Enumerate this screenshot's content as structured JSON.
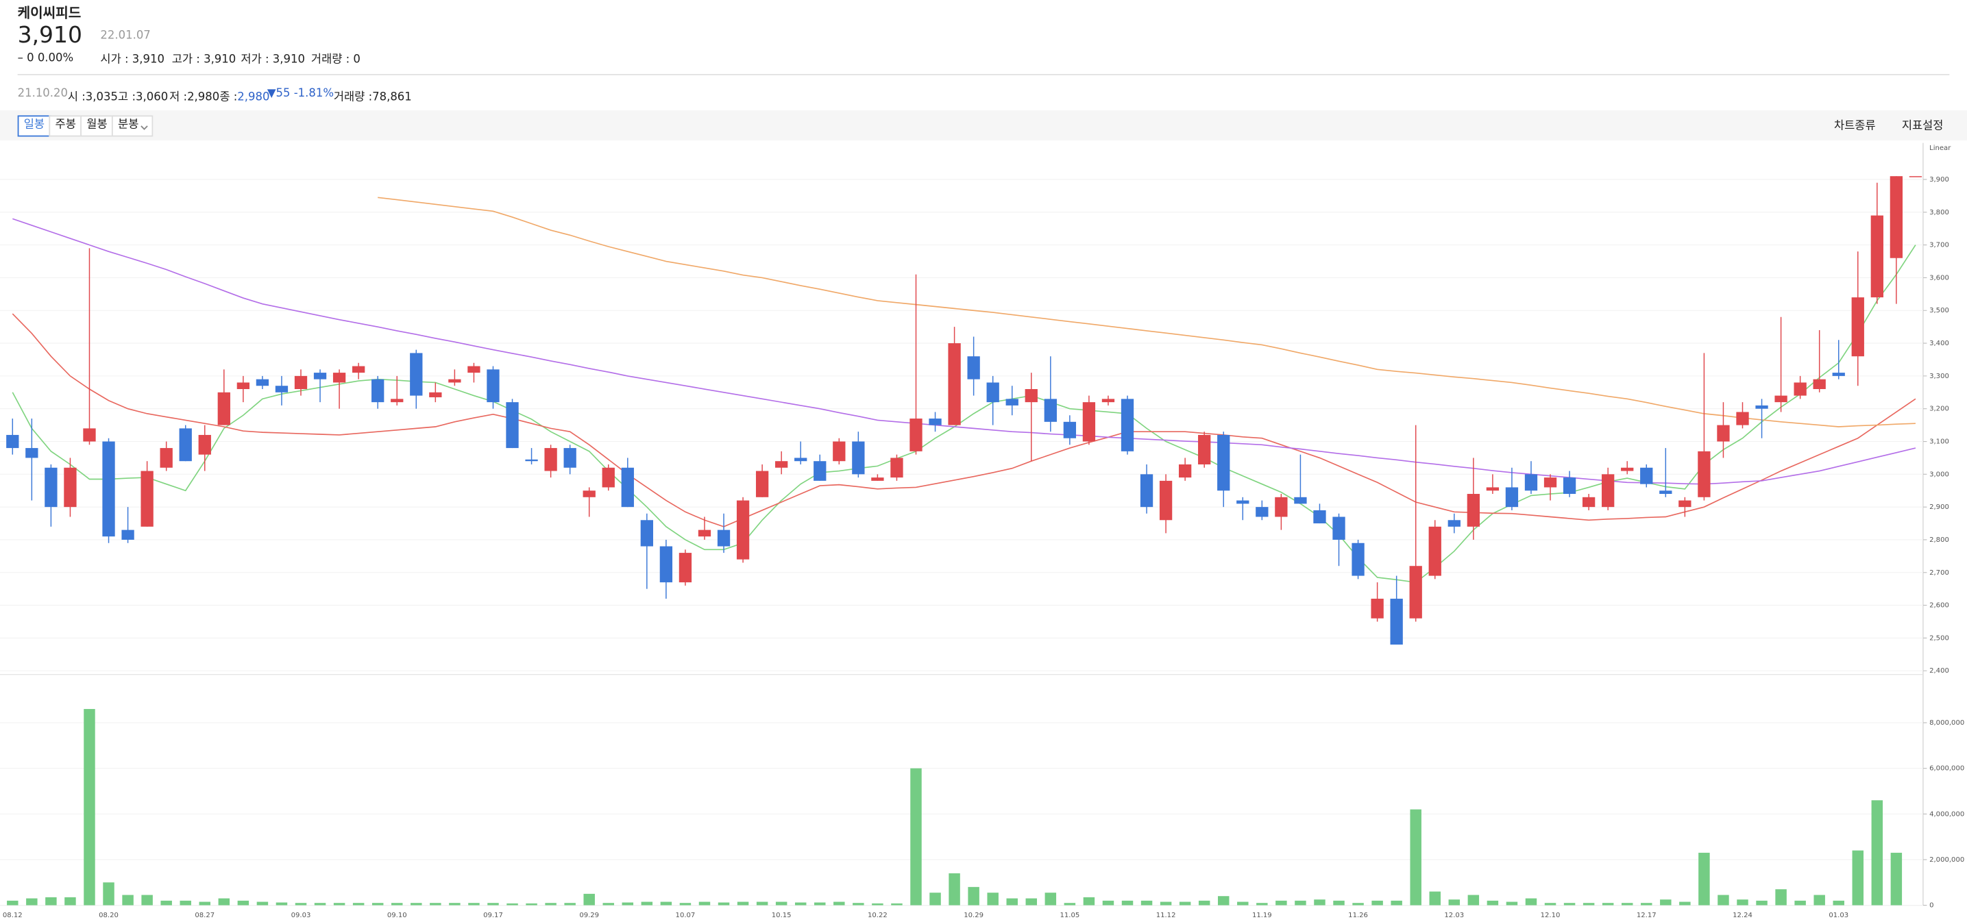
{
  "header": {
    "name": "케이씨피드",
    "price": "3,910",
    "change": "– 0 0.00%",
    "date": "22.01.07",
    "ohlc": [
      "시가 : 3,910",
      "고가 : 3,910",
      "저가 : 3,910",
      "거래량 : 0"
    ]
  },
  "info_bar": {
    "date": "21.10.20",
    "items": [
      {
        "label": "시 :",
        "value": "3,035"
      },
      {
        "label": "고 :",
        "value": "3,060"
      },
      {
        "label": "저 :",
        "value": "2,980"
      },
      {
        "label": "종 :",
        "value": "2,980"
      }
    ],
    "change": "▼55 -1.81%",
    "volume": {
      "label": "거래량 :",
      "value": "78,861"
    }
  },
  "toolbar": {
    "periods": [
      "일봉",
      "주봉",
      "월봉",
      "분봉"
    ],
    "right": [
      "차트종류",
      "지표설정"
    ]
  },
  "chart_data": [
    {
      "type": "candlestick",
      "scale": "Linear",
      "up_color": "#e0474c",
      "down_color": "#3b78d8",
      "grid": true,
      "open": [
        3120,
        3080,
        3020,
        2900,
        3100,
        3100,
        2830,
        2840,
        3020,
        3140,
        3060,
        3150,
        3260,
        3290,
        3270,
        3260,
        3310,
        3280,
        3310,
        3290,
        3220,
        3370,
        3235,
        3280,
        3310,
        3320,
        3220,
        3045,
        3010,
        3080,
        2930,
        2960,
        3020,
        2860,
        2780,
        2670,
        2810,
        2830,
        2740,
        2930,
        3020,
        3050,
        3040,
        3040,
        3100,
        2980,
        2990,
        3070,
        3170,
        3150,
        3360,
        3280,
        3230,
        3220,
        3230,
        3160,
        3100,
        3220,
        3230,
        3000,
        2860,
        2990,
        3030,
        3120,
        2920,
        2900,
        2870,
        2930,
        2890,
        2870,
        2790,
        2560,
        2620,
        2560,
        2690,
        2860,
        2840,
        2950,
        2960,
        3000,
        2960,
        2990,
        2900,
        2900,
        3010,
        3020,
        2950,
        2900,
        2930,
        3100,
        3150,
        3210,
        3220,
        3240,
        3260,
        3310,
        3360,
        3540,
        3660,
        3910
      ],
      "high": [
        3170,
        3170,
        3030,
        3050,
        3690,
        3110,
        2900,
        3040,
        3100,
        3150,
        3150,
        3320,
        3300,
        3300,
        3300,
        3320,
        3320,
        3320,
        3340,
        3300,
        3300,
        3380,
        3280,
        3320,
        3340,
        3330,
        3230,
        3080,
        3090,
        3090,
        2960,
        3030,
        3050,
        2880,
        2800,
        2770,
        2870,
        2880,
        2930,
        3030,
        3070,
        3100,
        3060,
        3110,
        3130,
        3000,
        3060,
        3610,
        3190,
        3450,
        3420,
        3300,
        3270,
        3310,
        3360,
        3180,
        3240,
        3240,
        3240,
        3030,
        3000,
        3050,
        3130,
        3130,
        2930,
        2920,
        2940,
        3060,
        2910,
        2880,
        2800,
        2670,
        2690,
        3150,
        2860,
        2880,
        3050,
        3000,
        3020,
        3040,
        3000,
        3010,
        2940,
        3020,
        3040,
        3030,
        3080,
        2930,
        3370,
        3220,
        3220,
        3230,
        3480,
        3300,
        3440,
        3410,
        3680,
        3890,
        3910,
        3910
      ],
      "low": [
        3060,
        2920,
        2840,
        2870,
        3090,
        2790,
        2790,
        2840,
        3010,
        3040,
        3010,
        3150,
        3220,
        3260,
        3210,
        3240,
        3220,
        3200,
        3290,
        3200,
        3210,
        3200,
        3220,
        3270,
        3280,
        3200,
        3080,
        3030,
        2990,
        3000,
        2870,
        2950,
        2900,
        2650,
        2620,
        2660,
        2800,
        2760,
        2730,
        2930,
        3000,
        3030,
        2980,
        3030,
        2990,
        2980,
        2980,
        3060,
        3130,
        3150,
        3240,
        3150,
        3180,
        3040,
        3130,
        3090,
        3090,
        3210,
        3060,
        2880,
        2820,
        2980,
        3020,
        2900,
        2860,
        2860,
        2830,
        2920,
        2850,
        2720,
        2680,
        2550,
        2480,
        2550,
        2680,
        2820,
        2800,
        2940,
        2890,
        2940,
        2920,
        2930,
        2890,
        2890,
        3000,
        2960,
        2930,
        2870,
        2920,
        3050,
        3140,
        3110,
        3190,
        3230,
        3250,
        3290,
        3270,
        3520,
        3520,
        3910
      ],
      "close": [
        3080,
        3050,
        2900,
        3020,
        3140,
        2810,
        2800,
        3010,
        3080,
        3040,
        3120,
        3250,
        3280,
        3270,
        3250,
        3300,
        3290,
        3310,
        3330,
        3220,
        3230,
        3240,
        3250,
        3290,
        3330,
        3220,
        3080,
        3040,
        3080,
        3020,
        2950,
        3020,
        2900,
        2780,
        2670,
        2760,
        2830,
        2780,
        2920,
        3010,
        3040,
        3040,
        2980,
        3100,
        3000,
        2990,
        3050,
        3170,
        3150,
        3400,
        3290,
        3220,
        3210,
        3260,
        3160,
        3110,
        3220,
        3230,
        3070,
        2900,
        2980,
        3030,
        3120,
        2950,
        2910,
        2870,
        2930,
        2910,
        2850,
        2800,
        2690,
        2620,
        2480,
        2720,
        2840,
        2840,
        2940,
        2960,
        2900,
        2950,
        2990,
        2940,
        2930,
        3000,
        3020,
        2970,
        2940,
        2920,
        3070,
        3150,
        3190,
        3200,
        3240,
        3280,
        3290,
        3300,
        3540,
        3790,
        3910,
        3910
      ],
      "series": [
        {
          "color": "#7fd47f",
          "values": [
            3250,
            3140,
            3070,
            3030,
            2985,
            2985,
            2988,
            2990,
            2970,
            2950,
            3040,
            3140,
            3180,
            3230,
            3245,
            3255,
            3265,
            3275,
            3285,
            3290,
            3287,
            3283,
            3280,
            3260,
            3240,
            3222,
            3195,
            3168,
            3130,
            3100,
            3070,
            3010,
            2955,
            2900,
            2840,
            2800,
            2770,
            2770,
            2790,
            2860,
            2920,
            2970,
            3005,
            3010,
            3018,
            3025,
            3048,
            3070,
            3110,
            3145,
            3185,
            3220,
            3230,
            3240,
            3220,
            3200,
            3195,
            3190,
            3185,
            3140,
            3100,
            3075,
            3050,
            3020,
            2995,
            2970,
            2945,
            2910,
            2870,
            2815,
            2745,
            2685,
            2678,
            2670,
            2715,
            2765,
            2830,
            2880,
            2908,
            2935,
            2940,
            2944,
            2960,
            2977,
            2988,
            2975,
            2962,
            2955,
            3030,
            3075,
            3110,
            3160,
            3205,
            3245,
            3295,
            3340,
            3430,
            3530,
            3610,
            3700
          ]
        },
        {
          "color": "#e8675e",
          "values": [
            3490,
            3430,
            3360,
            3300,
            3260,
            3225,
            3200,
            3185,
            3175,
            3165,
            3155,
            3145,
            3132,
            3128,
            3126,
            3124,
            3122,
            3120,
            3125,
            3130,
            3135,
            3140,
            3145,
            3160,
            3172,
            3183,
            3170,
            3155,
            3140,
            3130,
            3090,
            3045,
            3000,
            2960,
            2920,
            2885,
            2860,
            2840,
            2865,
            2890,
            2915,
            2940,
            2965,
            2968,
            2962,
            2955,
            2958,
            2960,
            2971,
            2982,
            2993,
            3005,
            3018,
            3040,
            3060,
            3080,
            3097,
            3113,
            3130,
            3130,
            3130,
            3130,
            3125,
            3120,
            3114,
            3110,
            3090,
            3070,
            3050,
            3025,
            3000,
            2975,
            2945,
            2915,
            2900,
            2885,
            2883,
            2881,
            2880,
            2875,
            2870,
            2865,
            2860,
            2863,
            2865,
            2868,
            2870,
            2885,
            2900,
            2928,
            2955,
            2982,
            3010,
            3035,
            3060,
            3085,
            3110,
            3150,
            3190,
            3230
          ]
        },
        {
          "color": "#b36ee8",
          "values": [
            3780,
            3760,
            3740,
            3720,
            3700,
            3680,
            3662,
            3644,
            3625,
            3603,
            3582,
            3560,
            3538,
            3520,
            3508,
            3496,
            3484,
            3472,
            3461,
            3450,
            3438,
            3427,
            3415,
            3404,
            3392,
            3380,
            3369,
            3358,
            3346,
            3335,
            3323,
            3312,
            3300,
            3290,
            3280,
            3270,
            3260,
            3250,
            3240,
            3230,
            3220,
            3210,
            3200,
            3188,
            3177,
            3165,
            3160,
            3155,
            3150,
            3145,
            3140,
            3135,
            3130,
            3127,
            3123,
            3120,
            3117,
            3113,
            3110,
            3107,
            3104,
            3101,
            3099,
            3096,
            3093,
            3090,
            3083,
            3077,
            3070,
            3063,
            3057,
            3050,
            3044,
            3037,
            3031,
            3024,
            3018,
            3011,
            3005,
            3000,
            2995,
            2990,
            2985,
            2980,
            2975,
            2974,
            2973,
            2971,
            2970,
            2973,
            2977,
            2980,
            2990,
            3000,
            3010,
            3024,
            3038,
            3052,
            3066,
            3080
          ]
        },
        {
          "color": "#f0a868",
          "values": [
            null,
            null,
            null,
            null,
            null,
            null,
            null,
            null,
            null,
            null,
            null,
            null,
            null,
            null,
            null,
            null,
            null,
            null,
            null,
            3845,
            3838,
            3831,
            3824,
            3817,
            3810,
            3803,
            3785,
            3765,
            3745,
            3730,
            3712,
            3695,
            3680,
            3665,
            3650,
            3640,
            3630,
            3620,
            3608,
            3600,
            3588,
            3576,
            3565,
            3553,
            3541,
            3530,
            3524,
            3518,
            3512,
            3506,
            3500,
            3494,
            3487,
            3480,
            3473,
            3466,
            3459,
            3452,
            3445,
            3438,
            3431,
            3424,
            3417,
            3410,
            3402,
            3395,
            3383,
            3370,
            3358,
            3345,
            3333,
            3320,
            3314,
            3309,
            3303,
            3297,
            3292,
            3286,
            3280,
            3272,
            3263,
            3255,
            3247,
            3238,
            3230,
            3219,
            3207,
            3196,
            3185,
            3179,
            3172,
            3166,
            3160,
            3155,
            3150,
            3145,
            3148,
            3150,
            3153,
            3155
          ]
        }
      ],
      "ylim": [
        2400,
        4000
      ],
      "yticks": [
        {
          "value": 2400,
          "label": "2,400"
        },
        {
          "value": 2500,
          "label": "2,500"
        },
        {
          "value": 2600,
          "label": "2,600"
        },
        {
          "value": 2700,
          "label": "2,700"
        },
        {
          "value": 2800,
          "label": "2,800"
        },
        {
          "value": 2900,
          "label": "2,900"
        },
        {
          "value": 3000,
          "label": "3,000"
        },
        {
          "value": 3100,
          "label": "3,100"
        },
        {
          "value": 3200,
          "label": "3,200"
        },
        {
          "value": 3300,
          "label": "3,300"
        },
        {
          "value": 3400,
          "label": "3,400"
        },
        {
          "value": 3500,
          "label": "3,500"
        },
        {
          "value": 3600,
          "label": "3,600"
        },
        {
          "value": 3700,
          "label": "3,700"
        },
        {
          "value": 3800,
          "label": "3,800"
        },
        {
          "value": 3900,
          "label": "3,900"
        }
      ]
    },
    {
      "type": "bar",
      "color": "#74cc84",
      "grid": true,
      "categories": [
        "08.12",
        null,
        null,
        null,
        null,
        "08.20",
        null,
        null,
        null,
        null,
        "08.27",
        null,
        null,
        null,
        null,
        "09.03",
        null,
        null,
        null,
        null,
        "09.10",
        null,
        null,
        null,
        null,
        "09.17",
        null,
        null,
        null,
        null,
        "09.29",
        null,
        null,
        null,
        null,
        "10.07",
        null,
        null,
        null,
        null,
        "10.15",
        null,
        null,
        null,
        null,
        "10.22",
        null,
        null,
        null,
        null,
        "10.29",
        null,
        null,
        null,
        null,
        "11.05",
        null,
        null,
        null,
        null,
        "11.12",
        null,
        null,
        null,
        null,
        "11.19",
        null,
        null,
        null,
        null,
        "11.26",
        null,
        null,
        null,
        null,
        "12.03",
        null,
        null,
        null,
        null,
        "12.10",
        null,
        null,
        null,
        null,
        "12.17",
        null,
        null,
        null,
        null,
        "12.24",
        null,
        null,
        null,
        null,
        "01.03",
        null,
        null,
        null,
        null
      ],
      "values": [
        200000,
        300000,
        350000,
        350000,
        8600000,
        1000000,
        450000,
        450000,
        200000,
        200000,
        150000,
        300000,
        200000,
        150000,
        120000,
        100000,
        100000,
        100000,
        100000,
        100000,
        100000,
        100000,
        100000,
        100000,
        100000,
        100000,
        80000,
        80000,
        100000,
        100000,
        500000,
        100000,
        120000,
        150000,
        150000,
        100000,
        150000,
        120000,
        150000,
        150000,
        150000,
        120000,
        120000,
        150000,
        100000,
        80000,
        80000,
        6000000,
        550000,
        1400000,
        800000,
        550000,
        300000,
        300000,
        550000,
        100000,
        350000,
        200000,
        200000,
        200000,
        150000,
        150000,
        200000,
        400000,
        150000,
        100000,
        200000,
        200000,
        250000,
        200000,
        100000,
        200000,
        200000,
        4200000,
        600000,
        250000,
        450000,
        200000,
        150000,
        300000,
        100000,
        100000,
        100000,
        100000,
        100000,
        100000,
        250000,
        150000,
        2300000,
        450000,
        250000,
        200000,
        700000,
        200000,
        450000,
        200000,
        2400000,
        4600000,
        2300000,
        0
      ],
      "ylim": [
        0,
        10000000
      ],
      "yticks": [
        0,
        {
          "value": 2000000,
          "label": "2,000,000"
        },
        {
          "value": 4000000,
          "label": "4,000,000"
        },
        {
          "value": 6000000,
          "label": "6,000,000"
        },
        {
          "value": 8000000,
          "label": "8,000,000"
        }
      ]
    }
  ]
}
